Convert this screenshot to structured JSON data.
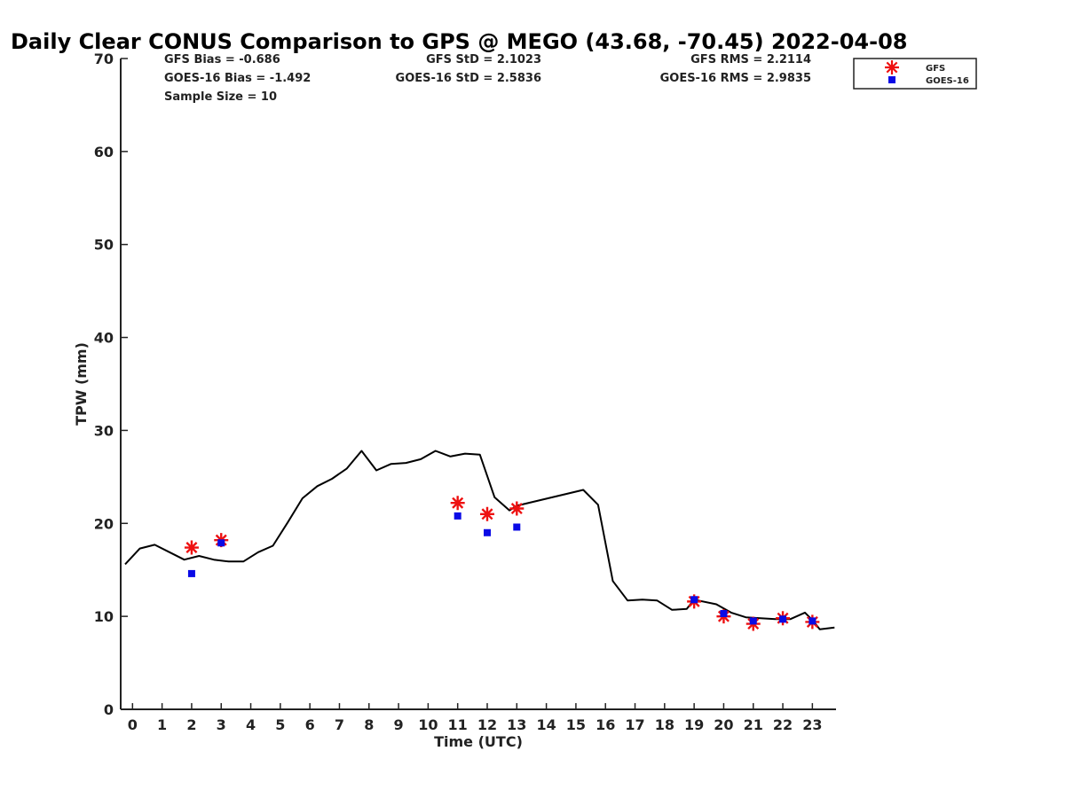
{
  "chart_data": {
    "type": "scatter",
    "title": "Daily Clear CONUS Comparison to GPS @ MEGO (43.68, -70.45) 2022-04-08",
    "xlabel": "Time (UTC)",
    "ylabel": "TPW (mm)",
    "xlim": [
      -0.4,
      23.8
    ],
    "ylim": [
      0,
      70
    ],
    "x_ticks": [
      0,
      1,
      2,
      3,
      4,
      5,
      6,
      7,
      8,
      9,
      10,
      11,
      12,
      13,
      14,
      15,
      16,
      17,
      18,
      19,
      20,
      21,
      22,
      23
    ],
    "y_ticks": [
      0,
      10,
      20,
      30,
      40,
      50,
      60,
      70
    ],
    "grid": false,
    "legend_position": "top-right",
    "stats": [
      [
        "GFS Bias = -0.686",
        "GFS StD = 2.1023",
        "GFS RMS = 2.2114"
      ],
      [
        "GOES-16 Bias = -1.492",
        "GOES-16 StD = 2.5836",
        "GOES-16 RMS = 2.9835"
      ],
      [
        "Sample Size = 10"
      ]
    ],
    "series": [
      {
        "name": "GPS",
        "kind": "line",
        "color": "#000000",
        "x": [
          -0.25,
          0.25,
          0.75,
          1.25,
          1.75,
          2.25,
          2.75,
          3.25,
          3.75,
          4.25,
          4.75,
          5.25,
          5.75,
          6.25,
          6.75,
          7.25,
          7.75,
          8.25,
          8.75,
          9.25,
          9.75,
          10.25,
          10.75,
          11.25,
          11.75,
          12.25,
          12.75,
          13.0,
          15.25,
          15.75,
          16.25,
          16.75,
          17.25,
          17.75,
          18.25,
          18.75,
          19.0,
          19.75,
          20.25,
          20.75,
          21.25,
          21.75,
          22.25,
          22.75,
          23.0,
          23.25,
          23.75
        ],
        "y": [
          15.6,
          17.3,
          17.7,
          16.9,
          16.1,
          16.5,
          16.1,
          15.9,
          15.9,
          16.9,
          17.6,
          20.1,
          22.7,
          24.0,
          24.8,
          25.9,
          27.8,
          25.7,
          26.4,
          26.5,
          26.9,
          27.8,
          27.2,
          27.5,
          27.4,
          22.8,
          21.4,
          21.9,
          23.6,
          22.0,
          13.8,
          11.7,
          11.8,
          11.7,
          10.7,
          10.8,
          11.8,
          11.3,
          10.4,
          9.9,
          9.8,
          9.7,
          9.7,
          10.4,
          9.6,
          8.6,
          8.8
        ]
      },
      {
        "name": "GFS",
        "kind": "scatter",
        "marker": "star",
        "color": "#ee1111",
        "x": [
          2,
          3,
          11,
          12,
          13,
          19,
          20,
          21,
          22,
          23
        ],
        "y": [
          17.4,
          18.2,
          22.2,
          21.0,
          21.6,
          11.6,
          10.0,
          9.2,
          9.8,
          9.4
        ]
      },
      {
        "name": "GOES-16",
        "kind": "scatter",
        "marker": "square",
        "color": "#0a0ae6",
        "x": [
          2,
          3,
          11,
          12,
          13,
          19,
          20,
          21,
          22,
          23
        ],
        "y": [
          14.6,
          17.9,
          20.8,
          19.0,
          19.6,
          11.8,
          10.3,
          9.5,
          9.7,
          9.5
        ]
      }
    ]
  }
}
